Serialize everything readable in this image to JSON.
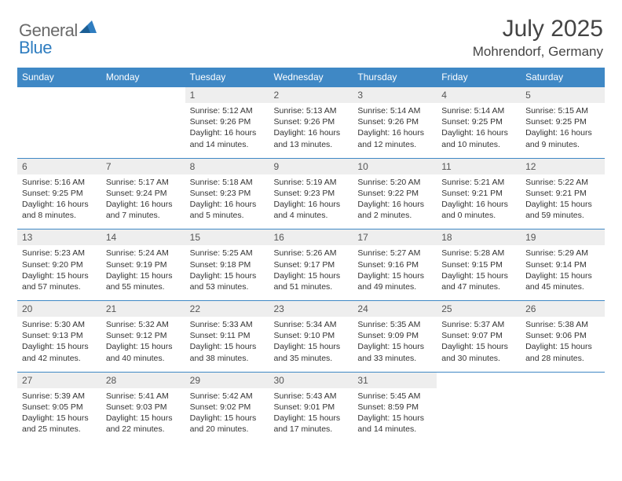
{
  "logo": {
    "text1": "General",
    "text2": "Blue"
  },
  "title": "July 2025",
  "location": "Mohrendorf, Germany",
  "colors": {
    "header_bg": "#3f88c5",
    "header_text": "#ffffff",
    "daynum_bg": "#eeeeee",
    "rule": "#3f88c5",
    "logo_gray": "#6a6a6a",
    "logo_blue": "#2f7dc0"
  },
  "day_headers": [
    "Sunday",
    "Monday",
    "Tuesday",
    "Wednesday",
    "Thursday",
    "Friday",
    "Saturday"
  ],
  "weeks": [
    [
      null,
      null,
      {
        "n": "1",
        "sr": "5:12 AM",
        "ss": "9:26 PM",
        "dl": "16 hours and 14 minutes."
      },
      {
        "n": "2",
        "sr": "5:13 AM",
        "ss": "9:26 PM",
        "dl": "16 hours and 13 minutes."
      },
      {
        "n": "3",
        "sr": "5:14 AM",
        "ss": "9:26 PM",
        "dl": "16 hours and 12 minutes."
      },
      {
        "n": "4",
        "sr": "5:14 AM",
        "ss": "9:25 PM",
        "dl": "16 hours and 10 minutes."
      },
      {
        "n": "5",
        "sr": "5:15 AM",
        "ss": "9:25 PM",
        "dl": "16 hours and 9 minutes."
      }
    ],
    [
      {
        "n": "6",
        "sr": "5:16 AM",
        "ss": "9:25 PM",
        "dl": "16 hours and 8 minutes."
      },
      {
        "n": "7",
        "sr": "5:17 AM",
        "ss": "9:24 PM",
        "dl": "16 hours and 7 minutes."
      },
      {
        "n": "8",
        "sr": "5:18 AM",
        "ss": "9:23 PM",
        "dl": "16 hours and 5 minutes."
      },
      {
        "n": "9",
        "sr": "5:19 AM",
        "ss": "9:23 PM",
        "dl": "16 hours and 4 minutes."
      },
      {
        "n": "10",
        "sr": "5:20 AM",
        "ss": "9:22 PM",
        "dl": "16 hours and 2 minutes."
      },
      {
        "n": "11",
        "sr": "5:21 AM",
        "ss": "9:21 PM",
        "dl": "16 hours and 0 minutes."
      },
      {
        "n": "12",
        "sr": "5:22 AM",
        "ss": "9:21 PM",
        "dl": "15 hours and 59 minutes."
      }
    ],
    [
      {
        "n": "13",
        "sr": "5:23 AM",
        "ss": "9:20 PM",
        "dl": "15 hours and 57 minutes."
      },
      {
        "n": "14",
        "sr": "5:24 AM",
        "ss": "9:19 PM",
        "dl": "15 hours and 55 minutes."
      },
      {
        "n": "15",
        "sr": "5:25 AM",
        "ss": "9:18 PM",
        "dl": "15 hours and 53 minutes."
      },
      {
        "n": "16",
        "sr": "5:26 AM",
        "ss": "9:17 PM",
        "dl": "15 hours and 51 minutes."
      },
      {
        "n": "17",
        "sr": "5:27 AM",
        "ss": "9:16 PM",
        "dl": "15 hours and 49 minutes."
      },
      {
        "n": "18",
        "sr": "5:28 AM",
        "ss": "9:15 PM",
        "dl": "15 hours and 47 minutes."
      },
      {
        "n": "19",
        "sr": "5:29 AM",
        "ss": "9:14 PM",
        "dl": "15 hours and 45 minutes."
      }
    ],
    [
      {
        "n": "20",
        "sr": "5:30 AM",
        "ss": "9:13 PM",
        "dl": "15 hours and 42 minutes."
      },
      {
        "n": "21",
        "sr": "5:32 AM",
        "ss": "9:12 PM",
        "dl": "15 hours and 40 minutes."
      },
      {
        "n": "22",
        "sr": "5:33 AM",
        "ss": "9:11 PM",
        "dl": "15 hours and 38 minutes."
      },
      {
        "n": "23",
        "sr": "5:34 AM",
        "ss": "9:10 PM",
        "dl": "15 hours and 35 minutes."
      },
      {
        "n": "24",
        "sr": "5:35 AM",
        "ss": "9:09 PM",
        "dl": "15 hours and 33 minutes."
      },
      {
        "n": "25",
        "sr": "5:37 AM",
        "ss": "9:07 PM",
        "dl": "15 hours and 30 minutes."
      },
      {
        "n": "26",
        "sr": "5:38 AM",
        "ss": "9:06 PM",
        "dl": "15 hours and 28 minutes."
      }
    ],
    [
      {
        "n": "27",
        "sr": "5:39 AM",
        "ss": "9:05 PM",
        "dl": "15 hours and 25 minutes."
      },
      {
        "n": "28",
        "sr": "5:41 AM",
        "ss": "9:03 PM",
        "dl": "15 hours and 22 minutes."
      },
      {
        "n": "29",
        "sr": "5:42 AM",
        "ss": "9:02 PM",
        "dl": "15 hours and 20 minutes."
      },
      {
        "n": "30",
        "sr": "5:43 AM",
        "ss": "9:01 PM",
        "dl": "15 hours and 17 minutes."
      },
      {
        "n": "31",
        "sr": "5:45 AM",
        "ss": "8:59 PM",
        "dl": "15 hours and 14 minutes."
      },
      null,
      null
    ]
  ],
  "labels": {
    "sunrise": "Sunrise: ",
    "sunset": "Sunset: ",
    "daylight": "Daylight: "
  }
}
